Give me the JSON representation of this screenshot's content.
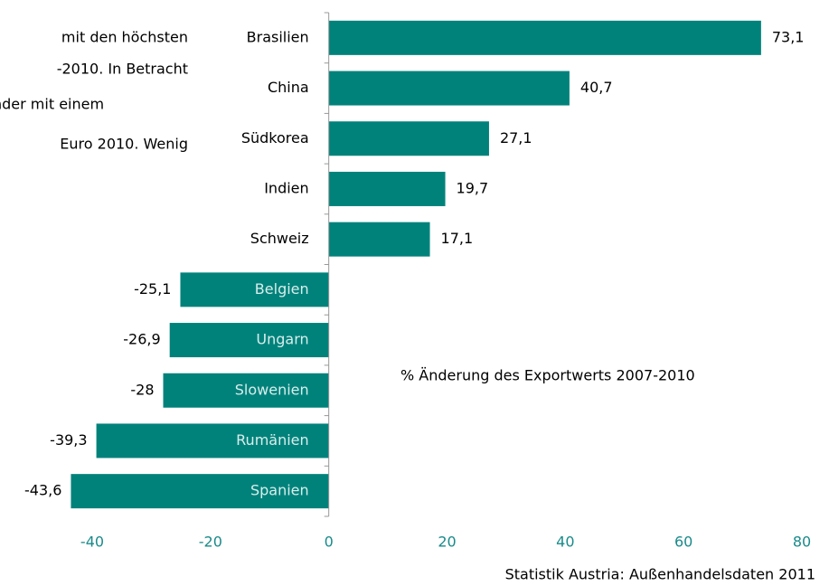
{
  "side_text": [
    "mit den höchsten",
    "-2010. In Betracht",
    "nder mit einem",
    "Euro 2010. Wenig"
  ],
  "chart_data": {
    "type": "hbar",
    "categories": [
      "Brasilien",
      "China",
      "Südkorea",
      "Indien",
      "Schweiz",
      "Belgien",
      "Ungarn",
      "Slowenien",
      "Rumänien",
      "Spanien"
    ],
    "values": [
      73.1,
      40.7,
      27.1,
      19.7,
      17.1,
      -25.1,
      -26.9,
      -28,
      -39.3,
      -43.6
    ],
    "value_labels": [
      "73,1",
      "40,7",
      "27,1",
      "19,7",
      "17,1",
      "-25,1",
      "-26,9",
      "-28",
      "-39,3",
      "-43,6"
    ],
    "color": "#00827b",
    "xlim": [
      -40,
      80
    ],
    "xticks": [
      -40,
      -20,
      0,
      20,
      40,
      60,
      80
    ],
    "annotation": "% Änderung des Exportwerts 2007-2010",
    "source": "Statistik Austria: Außenhandelsdaten 2011"
  }
}
